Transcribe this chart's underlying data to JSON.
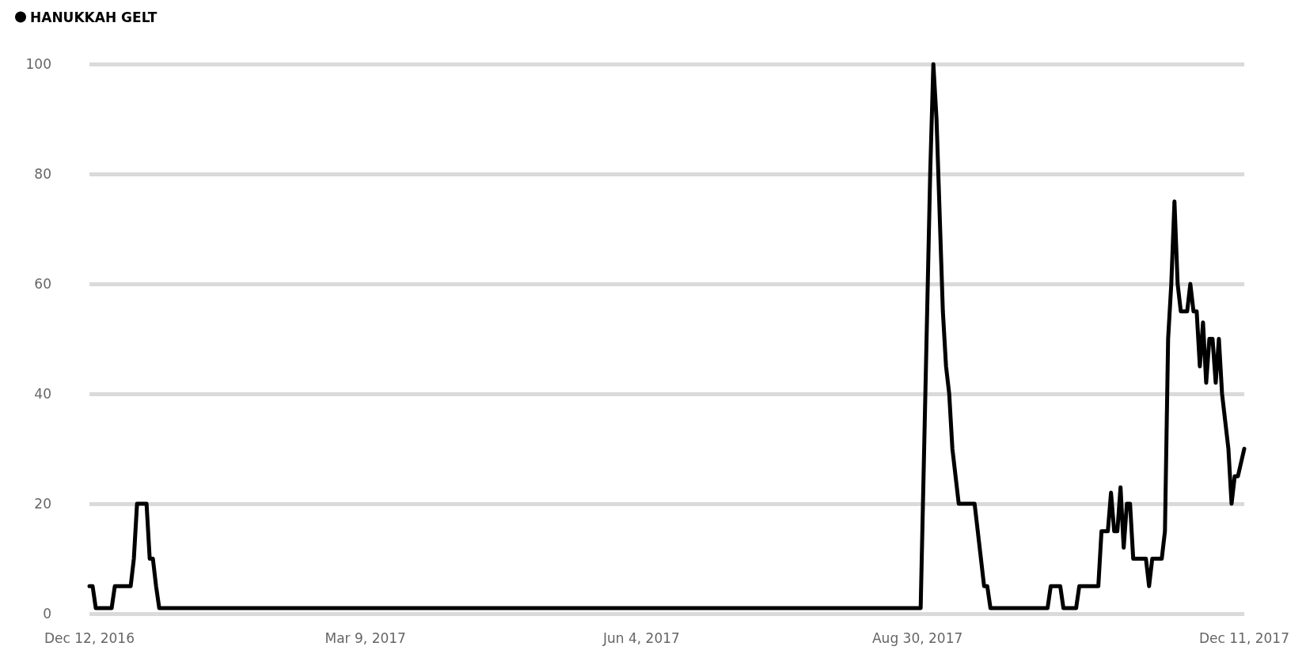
{
  "chart_data": {
    "type": "line",
    "x": [
      "2016-12-12",
      "2016-12-13",
      "2016-12-14",
      "2016-12-19",
      "2016-12-20",
      "2016-12-25",
      "2016-12-26",
      "2016-12-27",
      "2016-12-30",
      "2016-12-31",
      "2017-01-01",
      "2017-01-02",
      "2017-01-03",
      "2017-08-31",
      "2017-09-03",
      "2017-09-04",
      "2017-09-05",
      "2017-09-07",
      "2017-09-08",
      "2017-09-09",
      "2017-09-10",
      "2017-09-12",
      "2017-09-17",
      "2017-09-20",
      "2017-09-21",
      "2017-09-22",
      "2017-10-10",
      "2017-10-11",
      "2017-10-14",
      "2017-10-15",
      "2017-10-19",
      "2017-10-20",
      "2017-10-26",
      "2017-10-27",
      "2017-10-29",
      "2017-10-30",
      "2017-10-31",
      "2017-11-01",
      "2017-11-02",
      "2017-11-03",
      "2017-11-04",
      "2017-11-05",
      "2017-11-06",
      "2017-11-10",
      "2017-11-11",
      "2017-11-12",
      "2017-11-15",
      "2017-11-16",
      "2017-11-17",
      "2017-11-18",
      "2017-11-19",
      "2017-11-20",
      "2017-11-21",
      "2017-11-23",
      "2017-11-24",
      "2017-11-25",
      "2017-11-26",
      "2017-11-27",
      "2017-11-28",
      "2017-11-29",
      "2017-11-30",
      "2017-12-01",
      "2017-12-02",
      "2017-12-03",
      "2017-12-04",
      "2017-12-05",
      "2017-12-06",
      "2017-12-07",
      "2017-12-08",
      "2017-12-09",
      "2017-12-11"
    ],
    "series": [
      {
        "name": "HANUKKAH GELT",
        "color": "#000000",
        "values": [
          5,
          5,
          1,
          1,
          5,
          5,
          10,
          20,
          20,
          10,
          10,
          5,
          1,
          1,
          80,
          100,
          90,
          55,
          45,
          40,
          30,
          20,
          20,
          5,
          5,
          1,
          1,
          5,
          5,
          1,
          1,
          5,
          5,
          15,
          15,
          22,
          15,
          15,
          23,
          12,
          20,
          20,
          10,
          10,
          5,
          10,
          10,
          15,
          50,
          60,
          75,
          60,
          55,
          55,
          60,
          55,
          55,
          45,
          53,
          42,
          50,
          50,
          42,
          50,
          40,
          35,
          30,
          20,
          25,
          25,
          30
        ]
      }
    ],
    "xlim": [
      "2016-12-12",
      "2017-12-11"
    ],
    "xticks": [
      {
        "value": "2016-12-12",
        "label": "Dec 12, 2016"
      },
      {
        "value": "2017-03-09",
        "label": "Mar 9, 2017"
      },
      {
        "value": "2017-06-04",
        "label": "Jun 4, 2017"
      },
      {
        "value": "2017-08-30",
        "label": "Aug 30, 2017"
      },
      {
        "value": "2017-12-11",
        "label": "Dec 11, 2017"
      }
    ],
    "ylim": [
      0,
      100
    ],
    "yticks": [
      0,
      20,
      40,
      60,
      80,
      100
    ],
    "grid": "y",
    "legend": "top left",
    "marker": "none",
    "line_style": "solid"
  }
}
